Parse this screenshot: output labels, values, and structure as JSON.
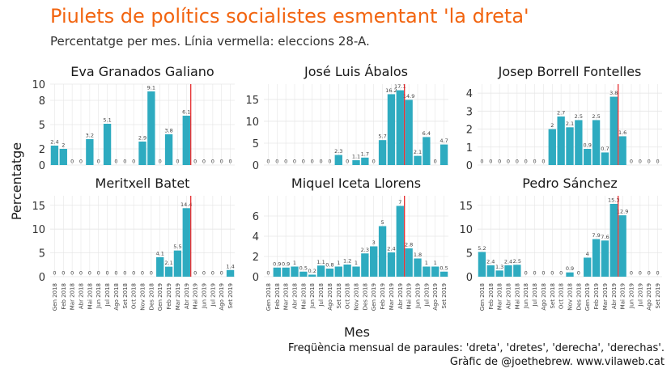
{
  "title": "Piulets de polítics socialistes esmentant 'la dreta'",
  "subtitle": "Percentatge per mes. Línia vermella: eleccions 28-A.",
  "caption_line1": "Freqüència mensual de paraules: 'dreta', 'dretes', 'derecha', 'derechas'.",
  "caption_line2": "Gràfic de @joethebrew. www.vilaweb.cat",
  "colors": {
    "title": "#f2640f",
    "bar": "#2eabc0",
    "election_line": "#e31a1c",
    "grid": "#e6e6e6"
  },
  "chart_data": {
    "type": "bar",
    "xlabel": "Mes",
    "ylabel": "Percentatge",
    "election_marker": "Abr 2019",
    "categories": [
      "Gen 2018",
      "Feb 2018",
      "Mar 2018",
      "Abr 2018",
      "Mai 2018",
      "Jun 2018",
      "Jul 2018",
      "Ago 2018",
      "Set 2018",
      "Oct 2018",
      "Nov 2018",
      "Des 2018",
      "Gen 2019",
      "Feb 2019",
      "Mar 2019",
      "Abr 2019",
      "Mai 2019",
      "Jun 2019",
      "Jul 2019",
      "Ago 2019",
      "Set 2019"
    ],
    "panels": [
      {
        "name": "Eva Granados Galiano",
        "ylim": [
          0,
          10
        ],
        "yticks": [
          0,
          2,
          5,
          8,
          10
        ],
        "values": [
          2.4,
          2,
          0,
          0,
          3.2,
          0,
          5.1,
          0,
          0,
          0,
          2.9,
          9.1,
          0,
          3.8,
          0,
          6.1,
          0,
          0,
          0,
          0,
          0
        ]
      },
      {
        "name": "José Luis Ábalos",
        "ylim": [
          0,
          18.5
        ],
        "yticks": [
          0,
          5,
          10,
          15
        ],
        "values": [
          0,
          0,
          0,
          0,
          0,
          0,
          0,
          0,
          2.3,
          0,
          1.1,
          1.7,
          0,
          5.7,
          16.2,
          17.1,
          14.9,
          2.1,
          6.4,
          0,
          4.7
        ]
      },
      {
        "name": "Josep Borrell Fontelles",
        "ylim": [
          0,
          4.5
        ],
        "yticks": [
          0,
          1,
          2,
          3,
          4
        ],
        "values": [
          0,
          0,
          0,
          0,
          0,
          0,
          0,
          0,
          2,
          2.7,
          2.1,
          2.5,
          0.9,
          2.5,
          0.7,
          3.8,
          1.6,
          0,
          0,
          0,
          0
        ]
      },
      {
        "name": "Meritxell Batet",
        "ylim": [
          0,
          17
        ],
        "yticks": [
          0,
          5,
          10,
          15
        ],
        "values": [
          0,
          0,
          0,
          0,
          0,
          0,
          0,
          0,
          0,
          0,
          0,
          0,
          4.1,
          2.1,
          5.5,
          14.4,
          0,
          0,
          0,
          0,
          1.4
        ]
      },
      {
        "name": "Miquel Iceta Llorens",
        "ylim": [
          0,
          8
        ],
        "yticks": [
          0,
          2,
          4,
          6
        ],
        "values": [
          0,
          0.9,
          0.9,
          1,
          0.5,
          0.2,
          1.1,
          0.8,
          1,
          1.2,
          1,
          2.3,
          3,
          5,
          2.4,
          7,
          2.8,
          1.8,
          1,
          1,
          0.5
        ]
      },
      {
        "name": "Pedro Sánchez",
        "ylim": [
          0,
          17
        ],
        "yticks": [
          0,
          5,
          10,
          15
        ],
        "values": [
          5.2,
          2.4,
          1.3,
          2.4,
          2.5,
          0,
          0,
          0,
          0,
          0,
          0.9,
          0,
          4,
          7.9,
          7.6,
          15.3,
          12.9,
          0,
          0,
          0,
          0
        ]
      }
    ]
  }
}
